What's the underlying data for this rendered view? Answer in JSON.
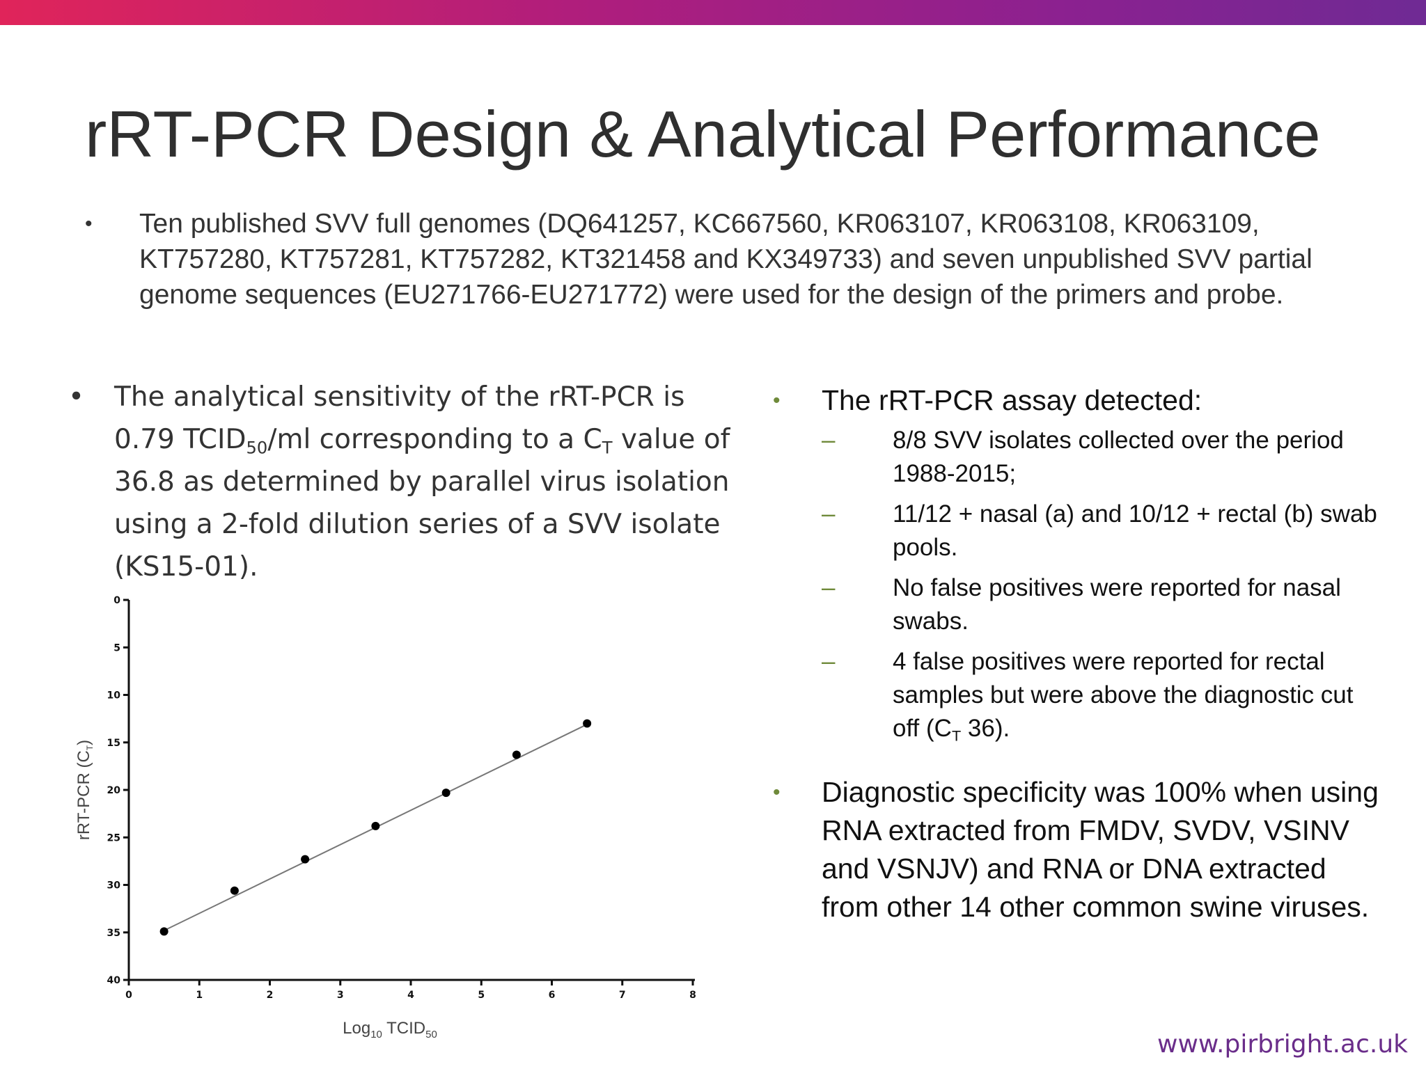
{
  "title": "rRT-PCR Design & Analytical Performance",
  "intro": {
    "bullet": "•",
    "text": "Ten published SVV full genomes (DQ641257, KC667560, KR063107, KR063108, KR063109, KT757280, KT757281, KT757282, KT321458 and KX349733) and seven unpublished SVV partial genome sequences (EU271766-EU271772) were used for the design of the primers and probe."
  },
  "left_bullet": {
    "bullet": "•",
    "part1": "The analytical sensitivity of the rRT-PCR is 0.79 TCID",
    "sub1": "50",
    "part2": "/ml corresponding to a C",
    "sub2": "T",
    "part3": " value of 36.8 as determined by parallel virus isolation using a 2-fold dilution series of a SVV isolate (KS15-01)."
  },
  "right": {
    "bullet1": {
      "bullet": "•",
      "text": "The rRT-PCR assay detected:",
      "dash": "–",
      "items": [
        "8/8 SVV isolates collected over the period 1988-2015;",
        "11/12 + nasal (a) and 10/12 + rectal (b) swab pools.",
        "No false positives were reported for nasal swabs."
      ],
      "item4": {
        "part1": "4 false positives were reported for rectal samples but were above the diagnostic cut off (C",
        "sub": "T",
        "part2": " 36)."
      }
    },
    "bullet2": {
      "bullet": "•",
      "text": "Diagnostic specificity was 100% when using RNA extracted from FMDV, SVDV, VSINV and VSNJV) and RNA or DNA extracted from other 14 other common swine viruses."
    }
  },
  "chart_data": {
    "type": "scatter",
    "title": "",
    "xlabel_main": "Log",
    "xlabel_sub1": "10",
    "xlabel_mid": " TCID",
    "xlabel_sub2": "50",
    "ylabel_main": "rRT-PCR (C",
    "ylabel_sub": "T",
    "ylabel_end": ")",
    "xlim": [
      0,
      8
    ],
    "ylim": [
      0,
      40
    ],
    "y_inverted": true,
    "x_ticks": [
      0,
      1,
      2,
      3,
      4,
      5,
      6,
      7,
      8
    ],
    "y_ticks": [
      0,
      5,
      10,
      15,
      20,
      25,
      30,
      35,
      40
    ],
    "x": [
      0.5,
      1.5,
      2.5,
      3.5,
      4.5,
      5.5,
      6.5
    ],
    "y": [
      34.9,
      30.6,
      27.3,
      23.8,
      20.3,
      16.3,
      13.0
    ],
    "fit_line": {
      "x": [
        0.5,
        6.5
      ],
      "y": [
        34.8,
        13.1
      ]
    },
    "colors": {
      "points": "#000000",
      "line": "#777777",
      "axis": "#111111"
    }
  },
  "footer": {
    "url": "www.pirbright.ac.uk"
  }
}
